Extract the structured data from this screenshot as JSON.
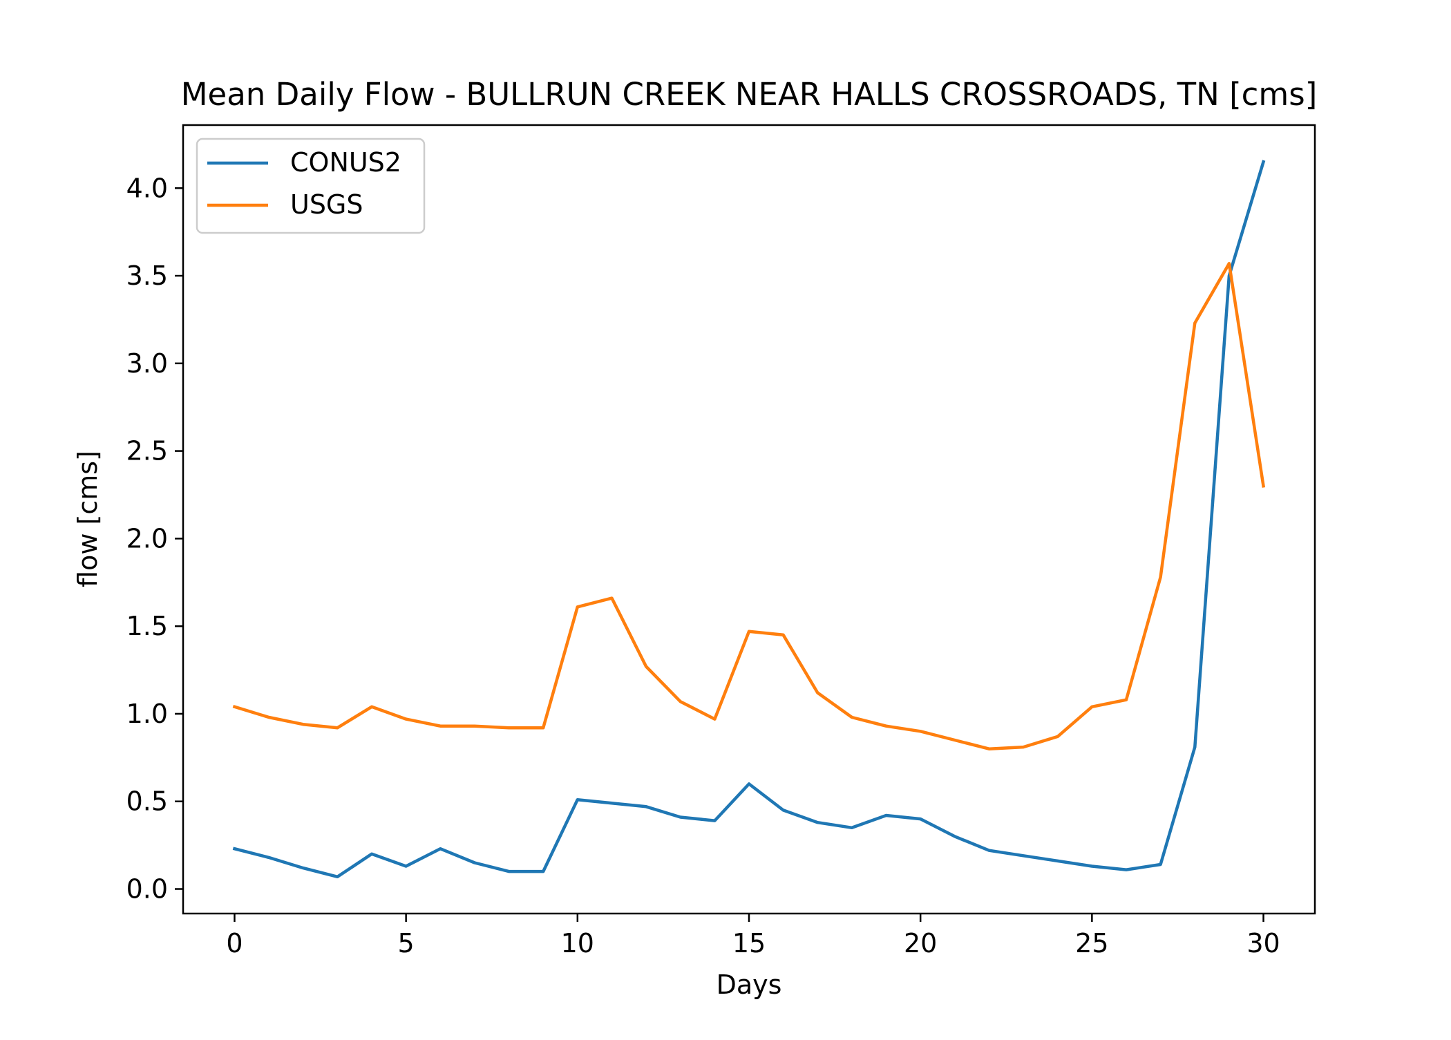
{
  "chart_data": {
    "type": "line",
    "title": "Mean Daily Flow - BULLRUN CREEK NEAR HALLS CROSSROADS, TN [cms]",
    "xlabel": "Days",
    "ylabel": "flow [cms]",
    "xlim": [
      -1.5,
      31.5
    ],
    "ylim": [
      -0.14,
      4.36
    ],
    "xticks": [
      0,
      5,
      10,
      15,
      20,
      25,
      30
    ],
    "yticks": [
      0.0,
      0.5,
      1.0,
      1.5,
      2.0,
      2.5,
      3.0,
      3.5,
      4.0
    ],
    "xtick_labels": [
      "0",
      "5",
      "10",
      "15",
      "20",
      "25",
      "30"
    ],
    "ytick_labels": [
      "0.0",
      "0.5",
      "1.0",
      "1.5",
      "2.0",
      "2.5",
      "3.0",
      "3.5",
      "4.0"
    ],
    "grid": false,
    "legend_position": "top-left",
    "x": [
      0,
      1,
      2,
      3,
      4,
      5,
      6,
      7,
      8,
      9,
      10,
      11,
      12,
      13,
      14,
      15,
      16,
      17,
      18,
      19,
      20,
      21,
      22,
      23,
      24,
      25,
      26,
      27,
      28,
      29,
      30
    ],
    "series": [
      {
        "name": "CONUS2",
        "color": "#1f77b4",
        "values": [
          0.23,
          0.18,
          0.12,
          0.07,
          0.2,
          0.13,
          0.23,
          0.15,
          0.1,
          0.1,
          0.51,
          0.49,
          0.47,
          0.41,
          0.39,
          0.6,
          0.45,
          0.38,
          0.35,
          0.42,
          0.4,
          0.3,
          0.22,
          0.19,
          0.16,
          0.13,
          0.11,
          0.14,
          0.81,
          3.5,
          4.15
        ]
      },
      {
        "name": "USGS",
        "color": "#ff7f0e",
        "values": [
          1.04,
          0.98,
          0.94,
          0.92,
          1.04,
          0.97,
          0.93,
          0.93,
          0.92,
          0.92,
          1.61,
          1.66,
          1.27,
          1.07,
          0.97,
          1.47,
          1.45,
          1.12,
          0.98,
          0.93,
          0.9,
          0.85,
          0.8,
          0.81,
          0.87,
          1.04,
          1.08,
          1.78,
          3.23,
          3.57,
          2.3
        ]
      }
    ]
  }
}
